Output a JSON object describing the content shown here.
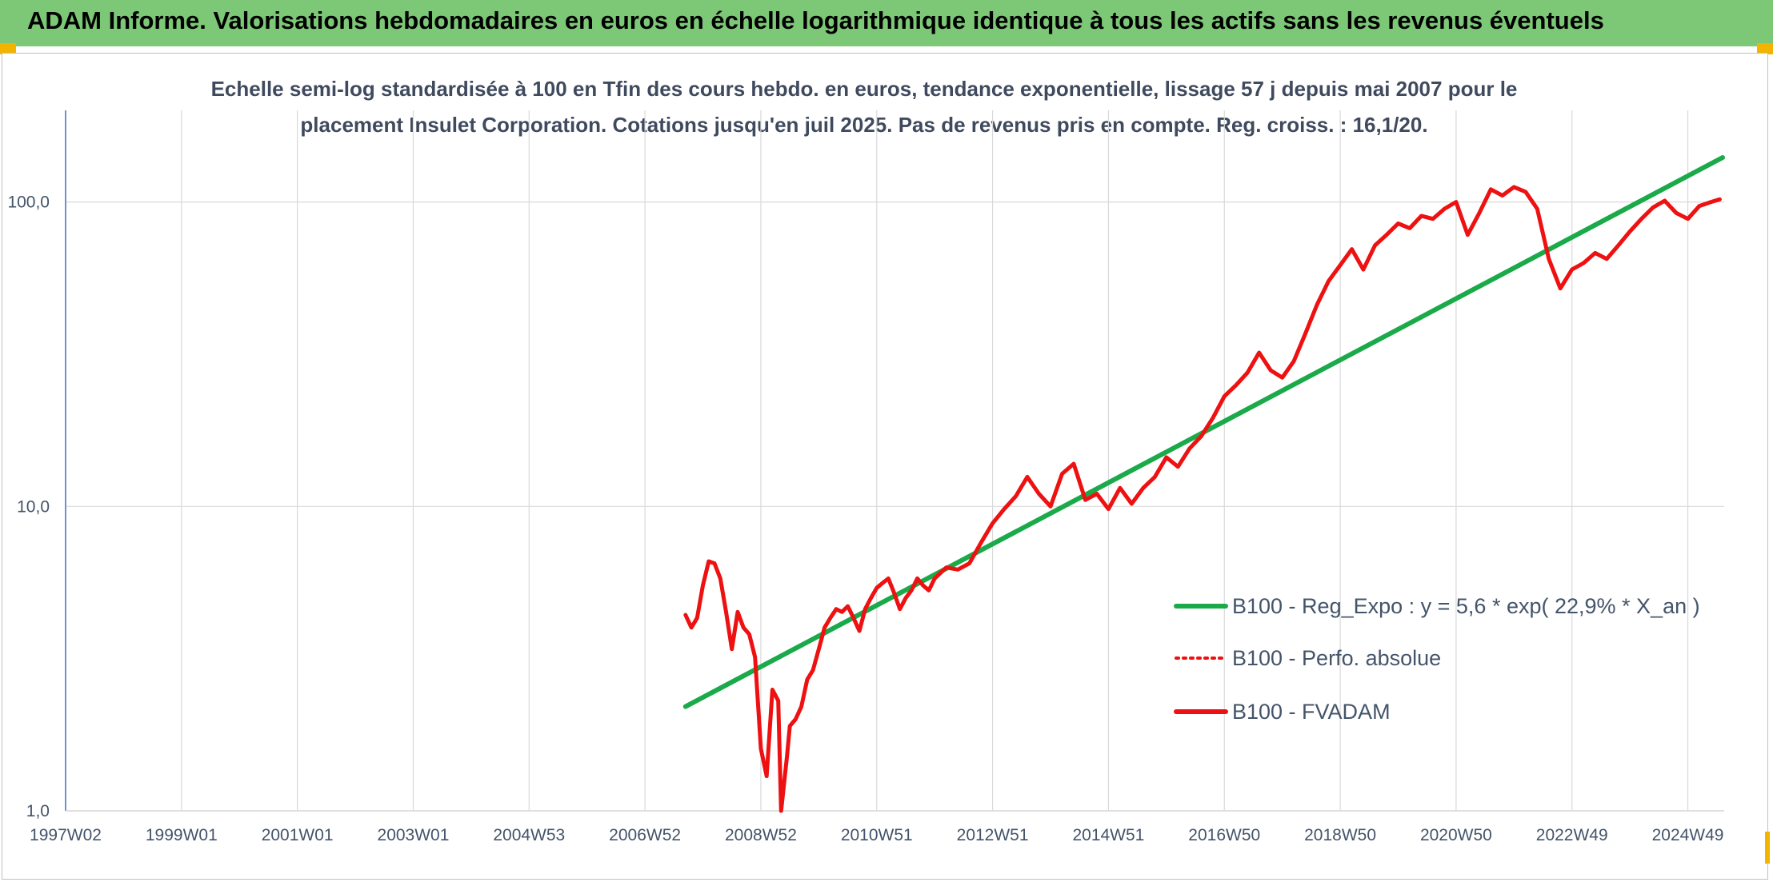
{
  "banner": {
    "title": "ADAM Informe. Valorisations hebdomadaires en euros en échelle logarithmique identique à tous les actifs sans les revenus éventuels"
  },
  "colors": {
    "banner": "#7dc876",
    "accent_corner": "#f2b400",
    "regression": "#1aaa4a",
    "fvadam": "#ee1111",
    "gridline": "#d9d9d9",
    "axis_text": "#44546a"
  },
  "chart_data": {
    "type": "line",
    "title_line1": "Echelle semi-log standardisée à 100 en Tfin des cours hebdo. en euros, tendance exponentielle, lissage 57 j depuis mai 2007 pour le",
    "title_line2": "placement Insulet Corporation.  Cotations jusqu'en juil 2025. Pas de revenus pris en compte. Reg. croiss. : 16,1/20.",
    "y_scale": "log",
    "ylim": [
      1,
      200
    ],
    "y_ticks": [
      "1,0",
      "10,0",
      "100,0"
    ],
    "y_tick_values": [
      1,
      10,
      100
    ],
    "xlim": [
      1997.0,
      2025.6
    ],
    "x_ticks": [
      "1997W02",
      "1999W01",
      "2001W01",
      "2003W01",
      "2004W53",
      "2006W52",
      "2008W52",
      "2010W51",
      "2012W51",
      "2014W51",
      "2016W50",
      "2018W50",
      "2020W50",
      "2022W49",
      "2024W49"
    ],
    "x_tick_values": [
      1997,
      1999,
      2001,
      2003,
      2005,
      2007,
      2009,
      2011,
      2013,
      2015,
      2017,
      2019,
      2021,
      2023,
      2025
    ],
    "grid": true,
    "legend_position": "right-center",
    "series": [
      {
        "name": "B100 - Reg_Expo : y = 5,6 * exp( 22,9% *  X_an )",
        "style": "solid-thick",
        "color": "#1aaa4a",
        "x": [
          2007.7,
          2025.6
        ],
        "y": [
          2.2,
          140
        ]
      },
      {
        "name": "B100 - Perfo. absolue",
        "style": "dotted",
        "color": "#ee1111",
        "x": [],
        "y": []
      },
      {
        "name": "B100 - FVADAM",
        "style": "solid",
        "color": "#ee1111",
        "x": [
          2007.7,
          2007.8,
          2007.9,
          2008.0,
          2008.1,
          2008.2,
          2008.3,
          2008.4,
          2008.5,
          2008.6,
          2008.7,
          2008.8,
          2008.9,
          2009.0,
          2009.1,
          2009.2,
          2009.3,
          2009.35,
          2009.45,
          2009.5,
          2009.6,
          2009.7,
          2009.8,
          2009.9,
          2010.0,
          2010.1,
          2010.2,
          2010.3,
          2010.4,
          2010.5,
          2010.6,
          2010.7,
          2010.8,
          2010.9,
          2011.0,
          2011.1,
          2011.2,
          2011.3,
          2011.4,
          2011.5,
          2011.6,
          2011.7,
          2011.8,
          2011.9,
          2012.0,
          2012.2,
          2012.4,
          2012.6,
          2012.8,
          2013.0,
          2013.2,
          2013.4,
          2013.6,
          2013.8,
          2014.0,
          2014.2,
          2014.4,
          2014.6,
          2014.8,
          2015.0,
          2015.2,
          2015.4,
          2015.6,
          2015.8,
          2016.0,
          2016.2,
          2016.4,
          2016.6,
          2016.8,
          2017.0,
          2017.2,
          2017.4,
          2017.6,
          2017.8,
          2018.0,
          2018.2,
          2018.4,
          2018.6,
          2018.8,
          2019.0,
          2019.2,
          2019.4,
          2019.6,
          2019.8,
          2020.0,
          2020.2,
          2020.4,
          2020.6,
          2020.8,
          2021.0,
          2021.2,
          2021.4,
          2021.6,
          2021.8,
          2022.0,
          2022.2,
          2022.4,
          2022.6,
          2022.8,
          2023.0,
          2023.2,
          2023.4,
          2023.6,
          2023.8,
          2024.0,
          2024.2,
          2024.4,
          2024.6,
          2024.8,
          2025.0,
          2025.2,
          2025.4,
          2025.55
        ],
        "y": [
          4.4,
          4.0,
          4.3,
          5.5,
          6.6,
          6.5,
          5.8,
          4.5,
          3.4,
          4.5,
          4.0,
          3.8,
          3.2,
          1.6,
          1.3,
          2.5,
          2.3,
          1.0,
          1.5,
          1.9,
          2.0,
          2.2,
          2.7,
          2.9,
          3.4,
          4.0,
          4.3,
          4.6,
          4.5,
          4.7,
          4.3,
          3.9,
          4.6,
          5.0,
          5.4,
          5.6,
          5.8,
          5.2,
          4.6,
          5.0,
          5.3,
          5.8,
          5.5,
          5.3,
          5.8,
          6.3,
          6.2,
          6.5,
          7.6,
          8.8,
          9.8,
          10.8,
          12.5,
          11.0,
          10.0,
          12.8,
          13.8,
          10.5,
          11.0,
          9.8,
          11.5,
          10.2,
          11.5,
          12.5,
          14.5,
          13.5,
          15.5,
          17.0,
          19.5,
          23.0,
          25.0,
          27.5,
          32.0,
          28.0,
          26.5,
          30.0,
          37.0,
          46.0,
          55.0,
          62.0,
          70.0,
          60.0,
          72.0,
          78.0,
          85.0,
          82.0,
          90.0,
          88.0,
          95.0,
          100.0,
          78.0,
          92.0,
          110.0,
          105.0,
          112.0,
          108.0,
          95.0,
          65.0,
          52.0,
          60.0,
          63.0,
          68.0,
          65.0,
          72.0,
          80.0,
          88.0,
          96.0,
          101.0,
          92.0,
          88.0,
          97.0,
          100.0,
          102.0
        ]
      }
    ]
  }
}
